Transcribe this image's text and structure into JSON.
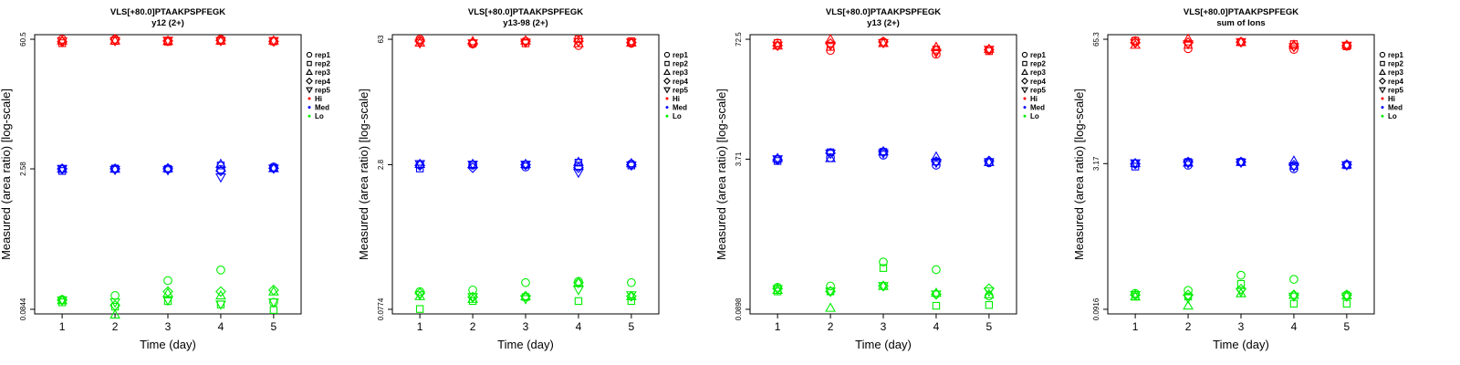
{
  "chart_data": [
    {
      "type": "scatter",
      "title": "VLS[+80.0]PTAAKPSPFEGK",
      "subtitle": "y12 (2+)",
      "xlabel": "Time (day)",
      "ylabel": "Measured (area ratio) [log-scale]",
      "y_scale": "log",
      "x_ticks": [
        1,
        2,
        3,
        4,
        5
      ],
      "y_ticks": [
        0.0844,
        2.58,
        60.5
      ],
      "y_tick_labels": [
        "0.0844",
        "2.58",
        "60.5"
      ],
      "ylim": [
        0.0844,
        60.5
      ],
      "legend": {
        "placement": "right",
        "shapes": [
          "rep1",
          "rep2",
          "rep3",
          "rep4",
          "rep5"
        ],
        "colors": [
          "Hi",
          "Med",
          "Lo"
        ]
      },
      "series": [
        {
          "name": "Hi",
          "reps": [
            [
              60.5,
              60.5,
              58.0,
              60.5,
              58.0
            ],
            [
              55.0,
              58.0,
              57.0,
              58.0,
              57.5
            ],
            [
              58.5,
              58.5,
              58.0,
              58.5,
              58.5
            ],
            [
              57.0,
              60.5,
              58.0,
              59.0,
              57.5
            ],
            [
              57.5,
              58.0,
              58.5,
              58.0,
              58.0
            ]
          ]
        },
        {
          "name": "Med",
          "reps": [
            [
              2.58,
              2.58,
              2.58,
              2.55,
              2.7
            ],
            [
              2.45,
              2.6,
              2.58,
              2.8,
              2.62
            ],
            [
              2.58,
              2.58,
              2.62,
              2.9,
              2.62
            ],
            [
              2.58,
              2.58,
              2.58,
              2.45,
              2.62
            ],
            [
              2.58,
              2.52,
              2.5,
              2.1,
              2.6
            ]
          ]
        },
        {
          "name": "Lo",
          "reps": [
            [
              0.107,
              0.118,
              0.17,
              0.22,
              0.1
            ],
            [
              0.1,
              0.09,
              0.103,
              0.095,
              0.083
            ],
            [
              0.105,
              0.074,
              0.125,
              0.118,
              0.13
            ],
            [
              0.106,
              0.093,
              0.13,
              0.13,
              0.135
            ],
            [
              0.105,
              0.1,
              0.105,
              0.095,
              0.1
            ]
          ]
        }
      ]
    },
    {
      "type": "scatter",
      "title": "VLS[+80.0]PTAAKPSPFEGK",
      "subtitle": "y13-98 (2+)",
      "xlabel": "Time (day)",
      "ylabel": "Measured (area ratio) [log-scale]",
      "y_scale": "log",
      "x_ticks": [
        1,
        2,
        3,
        4,
        5
      ],
      "y_ticks": [
        0.0774,
        2.8,
        63
      ],
      "y_tick_labels": [
        "0.0774",
        "2.8",
        "63"
      ],
      "ylim": [
        0.0774,
        63
      ],
      "legend": {
        "placement": "right",
        "shapes": [
          "rep1",
          "rep2",
          "rep3",
          "rep4",
          "rep5"
        ],
        "colors": [
          "Hi",
          "Med",
          "Lo"
        ]
      },
      "series": [
        {
          "name": "Hi",
          "reps": [
            [
              63.0,
              56.0,
              60.0,
              54.0,
              57.0
            ],
            [
              61.0,
              57.0,
              57.0,
              63.0,
              60.0
            ],
            [
              58.0,
              60.0,
              61.0,
              57.0,
              58.0
            ],
            [
              60.0,
              57.0,
              60.0,
              60.0,
              58.0
            ],
            [
              57.0,
              57.0,
              58.0,
              59.0,
              58.0
            ]
          ]
        },
        {
          "name": "Med",
          "reps": [
            [
              2.8,
              2.78,
              2.65,
              2.7,
              2.85
            ],
            [
              2.55,
              2.8,
              2.8,
              2.95,
              2.75
            ],
            [
              2.85,
              2.85,
              2.85,
              3.0,
              2.9
            ],
            [
              2.75,
              2.6,
              2.8,
              2.6,
              2.8
            ],
            [
              2.85,
              2.8,
              2.8,
              2.3,
              2.75
            ]
          ]
        },
        {
          "name": "Lo",
          "reps": [
            [
              0.12,
              0.125,
              0.15,
              0.155,
              0.15
            ],
            [
              0.078,
              0.095,
              0.105,
              0.095,
              0.095
            ],
            [
              0.107,
              0.1,
              0.107,
              0.15,
              0.107
            ],
            [
              0.115,
              0.105,
              0.107,
              0.15,
              0.107
            ],
            [
              0.11,
              0.105,
              0.1,
              0.125,
              0.11
            ]
          ]
        }
      ]
    },
    {
      "type": "scatter",
      "title": "VLS[+80.0]PTAAKPSPFEGK",
      "subtitle": "y13 (2+)",
      "xlabel": "Time (day)",
      "ylabel": "Measured (area ratio) [log-scale]",
      "y_scale": "log",
      "x_ticks": [
        1,
        2,
        3,
        4,
        5
      ],
      "y_ticks": [
        0.0898,
        3.71,
        72.5
      ],
      "y_tick_labels": [
        "0.0898",
        "3.71",
        "72.5"
      ],
      "ylim": [
        0.0898,
        72.5
      ],
      "legend": {
        "placement": "right",
        "shapes": [
          "rep1",
          "rep2",
          "rep3",
          "rep4",
          "rep5"
        ],
        "colors": [
          "Hi",
          "Med",
          "Lo"
        ]
      },
      "series": [
        {
          "name": "Hi",
          "reps": [
            [
              66.0,
              55.0,
              68.0,
              50.0,
              56.0
            ],
            [
              66.0,
              60.0,
              66.0,
              56.0,
              54.0
            ],
            [
              62.0,
              72.5,
              66.0,
              60.0,
              57.0
            ],
            [
              62.0,
              65.0,
              68.0,
              55.0,
              56.0
            ],
            [
              62.0,
              62.0,
              66.0,
              52.0,
              56.0
            ]
          ]
        },
        {
          "name": "Med",
          "reps": [
            [
              3.71,
              3.85,
              4.1,
              3.2,
              3.4
            ],
            [
              3.55,
              4.4,
              4.45,
              3.5,
              3.45
            ],
            [
              3.8,
              3.8,
              4.5,
              3.95,
              3.45
            ],
            [
              3.65,
              4.3,
              4.45,
              3.5,
              3.55
            ],
            [
              3.7,
              4.25,
              4.3,
              3.4,
              3.45
            ]
          ]
        },
        {
          "name": "Lo",
          "reps": [
            [
              0.155,
              0.16,
              0.29,
              0.24,
              0.125
            ],
            [
              0.14,
              0.14,
              0.25,
              0.098,
              0.1
            ],
            [
              0.145,
              0.093,
              0.16,
              0.135,
              0.13
            ],
            [
              0.15,
              0.14,
              0.16,
              0.13,
              0.15
            ],
            [
              0.148,
              0.14,
              0.16,
              0.13,
              0.14
            ]
          ]
        }
      ]
    },
    {
      "type": "scatter",
      "title": "VLS[+80.0]PTAAKPSPFEGK",
      "subtitle": "sum of Ions",
      "xlabel": "Time (day)",
      "ylabel": "Measured (area ratio) [log-scale]",
      "y_scale": "log",
      "x_ticks": [
        1,
        2,
        3,
        4,
        5
      ],
      "y_ticks": [
        0.0916,
        3.17,
        65.3
      ],
      "y_tick_labels": [
        "0.0916",
        "3.17",
        "65.3"
      ],
      "ylim": [
        0.0916,
        65.3
      ],
      "legend": {
        "placement": "right",
        "shapes": [
          "rep1",
          "rep2",
          "rep3",
          "rep4",
          "rep5"
        ],
        "colors": [
          "Hi",
          "Med",
          "Lo"
        ]
      },
      "series": [
        {
          "name": "Hi",
          "reps": [
            [
              63.0,
              52.0,
              61.0,
              51.0,
              56.0
            ],
            [
              63.0,
              57.0,
              61.0,
              58.0,
              55.0
            ],
            [
              57.0,
              66.0,
              61.0,
              57.0,
              57.0
            ],
            [
              60.0,
              60.0,
              61.0,
              55.0,
              56.0
            ],
            [
              60.0,
              58.0,
              61.0,
              54.0,
              56.0
            ]
          ]
        },
        {
          "name": "Med",
          "reps": [
            [
              3.17,
              3.05,
              3.3,
              2.8,
              3.1
            ],
            [
              2.95,
              3.3,
              3.3,
              3.0,
              3.05
            ],
            [
              3.2,
              3.25,
              3.3,
              3.4,
              3.1
            ],
            [
              3.15,
              3.3,
              3.3,
              3.05,
              3.1
            ],
            [
              3.2,
              3.2,
              3.25,
              2.95,
              3.05
            ]
          ]
        },
        {
          "name": "Lo",
          "reps": [
            [
              0.135,
              0.145,
              0.21,
              0.19,
              0.13
            ],
            [
              0.125,
              0.125,
              0.17,
              0.105,
              0.105
            ],
            [
              0.125,
              0.1,
              0.135,
              0.13,
              0.128
            ],
            [
              0.13,
              0.13,
              0.15,
              0.13,
              0.13
            ],
            [
              0.13,
              0.12,
              0.14,
              0.125,
              0.125
            ]
          ]
        }
      ]
    }
  ],
  "colors": {
    "Hi": "#ff0000",
    "Med": "#0000ff",
    "Lo": "#00ee00"
  }
}
